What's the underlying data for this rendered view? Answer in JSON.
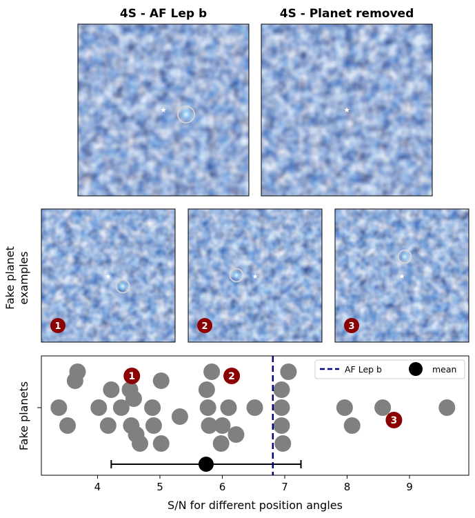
{
  "top_panels": [
    {
      "title": "4S - AF Lep b"
    },
    {
      "title": "4S - Planet removed"
    }
  ],
  "middle_row": {
    "ylabel_line1": "Fake planet",
    "ylabel_line2": "examples",
    "panels": [
      {
        "badge": "1"
      },
      {
        "badge": "2"
      },
      {
        "badge": "3"
      }
    ]
  },
  "colors": {
    "map_low": "#1a1f5c",
    "map_mid": "#3a6bc4",
    "map_high": "#9fd4f5",
    "point": "#808080",
    "badge": "#8b0000",
    "af_lep_line": "#00007f",
    "mean_marker": "#000000"
  },
  "chart_data": {
    "type": "scatter",
    "title": "",
    "xlabel": "S/N for different position angles",
    "ylabel": "Fake planets",
    "xlim": [
      3.1,
      9.95
    ],
    "x_ticks": [
      4,
      5,
      6,
      7,
      8,
      9
    ],
    "x_tick_labels": [
      "4",
      "5",
      "6",
      "7",
      "8",
      "9"
    ],
    "grid": false,
    "legend_position": "top-right",
    "legend": [
      {
        "label": "AF Lep b",
        "style": "dashed-line"
      },
      {
        "label": "mean",
        "style": "filled-circle"
      }
    ],
    "fake_planet_sn": [
      3.38,
      3.52,
      3.64,
      3.68,
      4.02,
      4.17,
      4.22,
      4.38,
      4.52,
      4.54,
      4.58,
      4.62,
      4.68,
      4.88,
      4.9,
      5.02,
      5.02,
      5.32,
      5.75,
      5.77,
      5.79,
      5.83,
      5.98,
      6.0,
      6.1,
      6.22,
      6.52,
      6.95,
      6.95,
      6.95,
      6.97,
      7.06,
      7.96,
      8.08,
      8.57,
      9.6
    ],
    "swarm_level": [
      0.0,
      -1.0,
      1.5,
      2.0,
      0.0,
      -1.0,
      1.0,
      0.0,
      1.0,
      -1.0,
      0.5,
      -1.5,
      -2.0,
      0.0,
      -1.0,
      -2.0,
      1.5,
      -0.5,
      1.0,
      0.0,
      -1.0,
      2.0,
      -2.0,
      -1.0,
      0.0,
      -1.5,
      0.0,
      0.0,
      1.0,
      -1.0,
      -2.0,
      2.0,
      0.0,
      -1.0,
      0.0,
      0.0
    ],
    "af_lep_b_sn": 6.81,
    "mean_sn": 5.74,
    "mean_error": [
      4.22,
      7.26
    ],
    "highlighted": [
      {
        "label": "1",
        "sn": 4.55
      },
      {
        "label": "2",
        "sn": 6.15
      },
      {
        "label": "3",
        "sn": 8.75
      }
    ]
  }
}
